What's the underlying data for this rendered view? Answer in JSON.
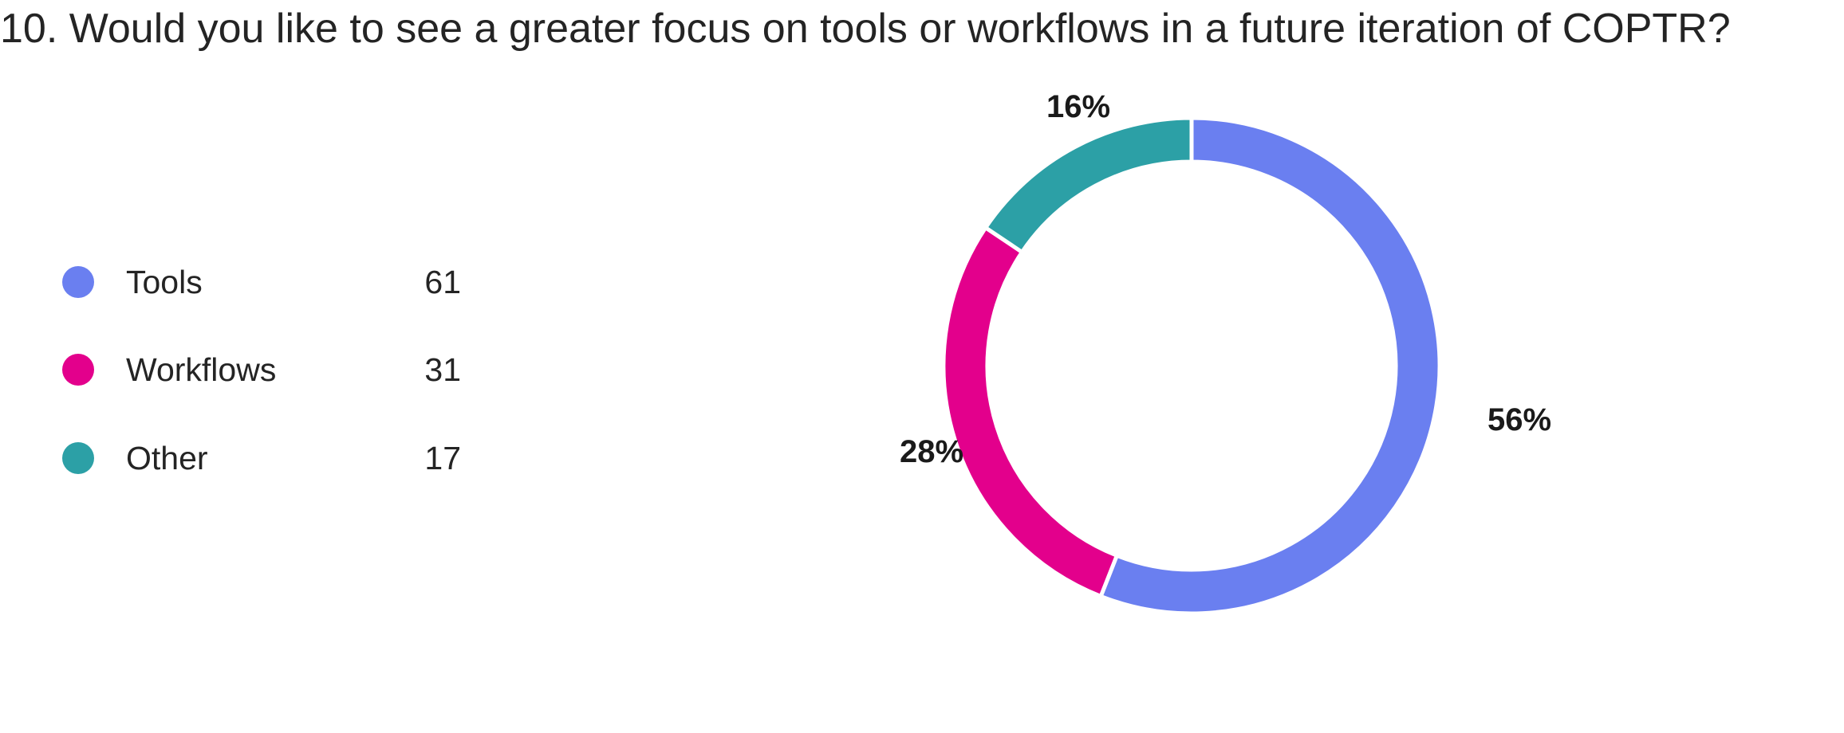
{
  "title": "10. Would you like to see a greater focus on tools or workflows in a future iteration of COPTR?",
  "chart_data": {
    "type": "pie",
    "variant": "donut",
    "categories": [
      "Tools",
      "Workflows",
      "Other"
    ],
    "values": [
      61,
      31,
      17
    ],
    "percent_labels": [
      "56%",
      "28%",
      "16%"
    ],
    "colors": [
      "#6a7ff0",
      "#e3008c",
      "#2ca0a6"
    ],
    "legend_placement": "left"
  }
}
